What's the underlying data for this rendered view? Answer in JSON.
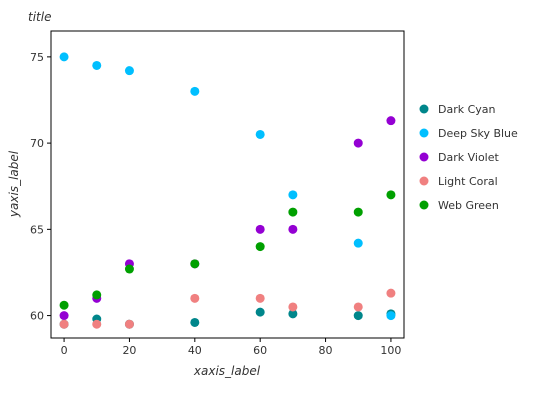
{
  "chart_data": {
    "type": "scatter",
    "title": "title",
    "xlabel": "xaxis_label",
    "ylabel": "yaxis_label",
    "xlim": [
      -4,
      104
    ],
    "ylim": [
      58.7,
      76.5
    ],
    "x_ticks": [
      0,
      20,
      40,
      60,
      80,
      100
    ],
    "y_ticks": [
      60,
      65,
      70,
      75
    ],
    "grid": false,
    "legend_position": "right",
    "series": [
      {
        "name": "Dark Cyan",
        "color": "#00868B",
        "points": [
          [
            0,
            59.5
          ],
          [
            10,
            59.8
          ],
          [
            20,
            59.5
          ],
          [
            40,
            59.6
          ],
          [
            60,
            60.2
          ],
          [
            70,
            60.1
          ],
          [
            90,
            60.0
          ],
          [
            100,
            60.1
          ]
        ]
      },
      {
        "name": "Deep Sky Blue",
        "color": "#00BFFF",
        "points": [
          [
            0,
            75.0
          ],
          [
            10,
            74.5
          ],
          [
            20,
            74.2
          ],
          [
            40,
            73.0
          ],
          [
            60,
            70.5
          ],
          [
            70,
            67.0
          ],
          [
            90,
            64.2
          ],
          [
            100,
            60.0
          ]
        ]
      },
      {
        "name": "Dark Violet",
        "color": "#9400D3",
        "points": [
          [
            0,
            60.0
          ],
          [
            10,
            61.0
          ],
          [
            20,
            63.0
          ],
          [
            40,
            63.0
          ],
          [
            60,
            65.0
          ],
          [
            70,
            65.0
          ],
          [
            90,
            70.0
          ],
          [
            100,
            71.3
          ]
        ]
      },
      {
        "name": "Light Coral",
        "color": "#F08080",
        "points": [
          [
            0,
            59.5
          ],
          [
            10,
            59.5
          ],
          [
            20,
            59.5
          ],
          [
            40,
            61.0
          ],
          [
            60,
            61.0
          ],
          [
            70,
            60.5
          ],
          [
            90,
            60.5
          ],
          [
            100,
            61.3
          ]
        ]
      },
      {
        "name": "Web Green",
        "color": "#00A000",
        "points": [
          [
            0,
            60.6
          ],
          [
            10,
            61.2
          ],
          [
            20,
            62.7
          ],
          [
            40,
            63.0
          ],
          [
            60,
            64.0
          ],
          [
            70,
            66.0
          ],
          [
            90,
            66.0
          ],
          [
            100,
            67.0
          ]
        ]
      }
    ]
  }
}
